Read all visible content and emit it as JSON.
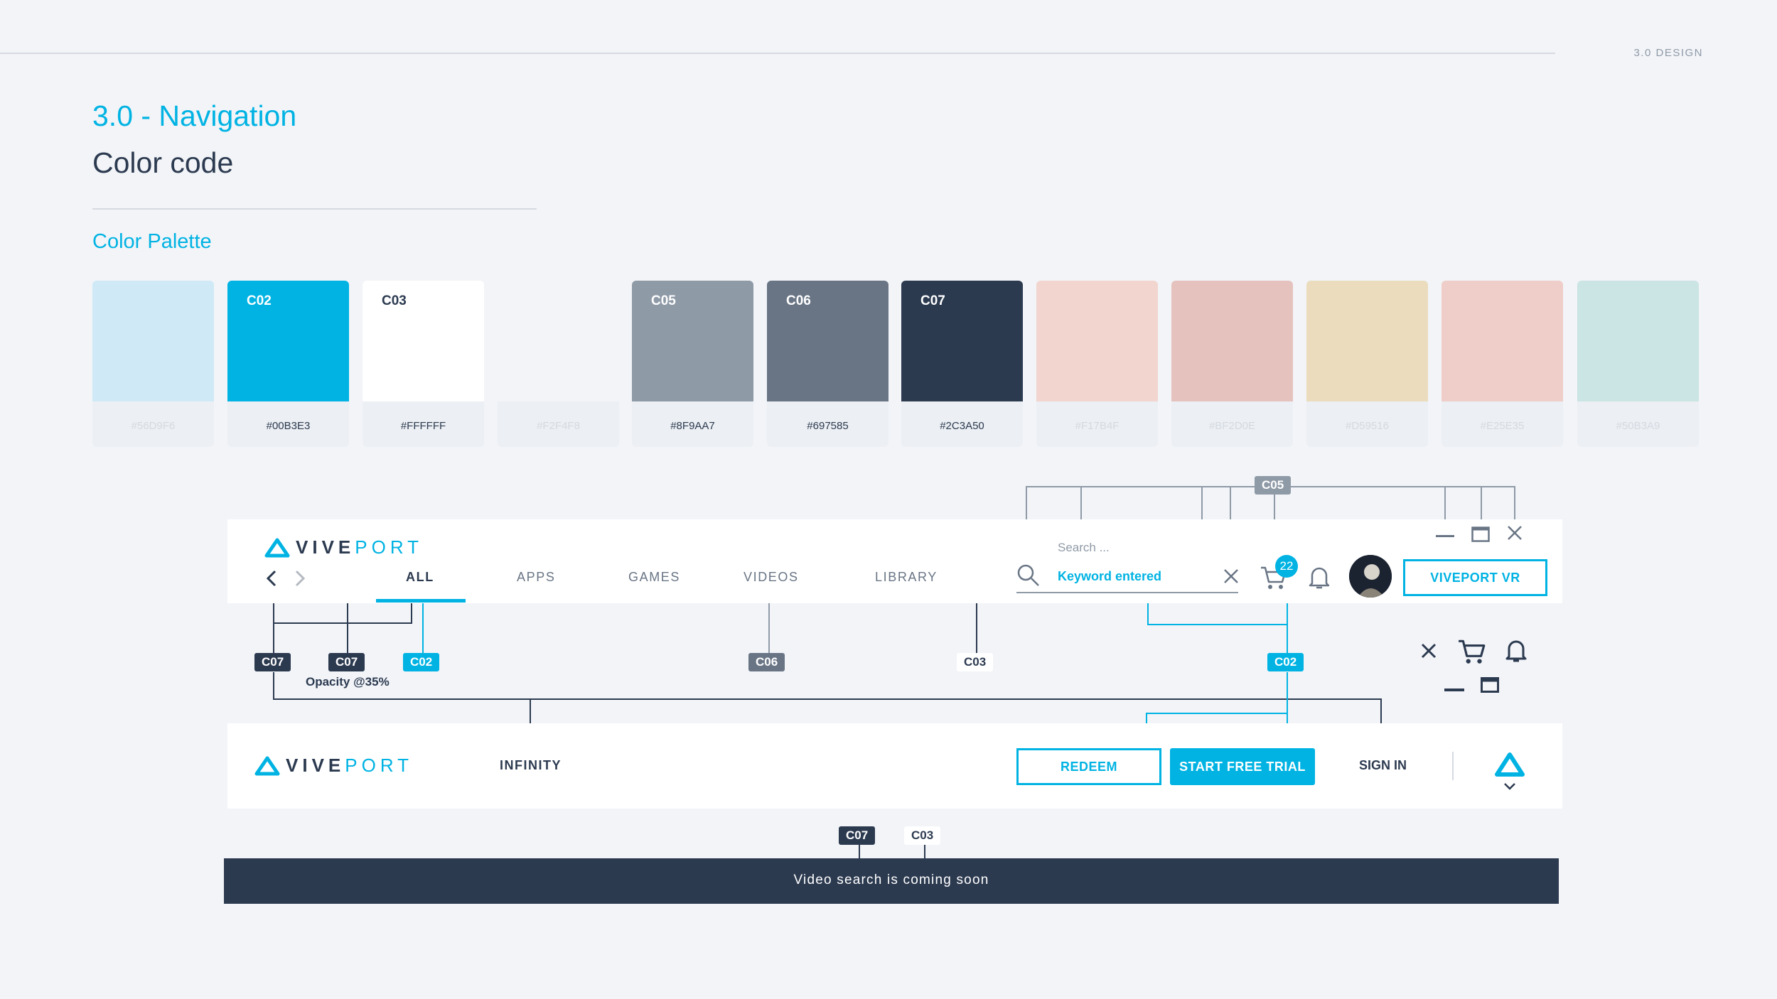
{
  "header": {
    "section_tag": "3.0 DESIGN",
    "section_title": "3.0 - Navigation",
    "page_subtitle": "Color code",
    "palette_title": "Color Palette"
  },
  "palette": [
    {
      "name": "",
      "hex": "#56D9F6",
      "color": "#CFEAF6",
      "hex_visible": false
    },
    {
      "name": "C02",
      "hex": "#00B3E3",
      "color": "#00B3E3",
      "hex_visible": true
    },
    {
      "name": "C03",
      "hex": "#FFFFFF",
      "color": "#FFFFFF",
      "hex_visible": true
    },
    {
      "name": "",
      "hex": "#F2F4F8",
      "color": "#F2F4F8",
      "hex_visible": false
    },
    {
      "name": "C05",
      "hex": "#8F9AA7",
      "color": "#8F9AA7",
      "hex_visible": true
    },
    {
      "name": "C06",
      "hex": "#697585",
      "color": "#697585",
      "hex_visible": true
    },
    {
      "name": "C07",
      "hex": "#2C3A50",
      "color": "#2C3A50",
      "hex_visible": true
    },
    {
      "name": "",
      "hex": "#F17B4F",
      "color": "#F2D5CE",
      "hex_visible": false
    },
    {
      "name": "",
      "hex": "#BF2D0E",
      "color": "#E5C2BE",
      "hex_visible": false
    },
    {
      "name": "",
      "hex": "#D59516",
      "color": "#EADCBD",
      "hex_visible": false
    },
    {
      "name": "",
      "hex": "#E25E35",
      "color": "#EFCDC8",
      "hex_visible": false
    },
    {
      "name": "",
      "hex": "#50B3A9",
      "color": "#CBE4E4",
      "hex_visible": false
    }
  ],
  "nav_primary": {
    "logo_vive": "VIVE",
    "logo_port": "PORT",
    "tabs": [
      "ALL",
      "APPS",
      "GAMES",
      "VIDEOS",
      "LIBRARY"
    ],
    "search_placeholder": "Search ...",
    "search_value": "Keyword entered",
    "cart_badge": "22",
    "vr_button": "VIVEPORT VR"
  },
  "nav_secondary": {
    "logo_vive": "VIVE",
    "logo_port": "PORT",
    "infinity": "INFINITY",
    "redeem": "REDEEM",
    "start_trial": "START FREE TRIAL",
    "sign_in": "SIGN IN"
  },
  "annotations": {
    "c07": "C07",
    "c07_b": "C07",
    "c07_note": "Opacity @35%",
    "c02": "C02",
    "c06": "C06",
    "c03": "C03",
    "c02_b": "C02",
    "c05": "C05",
    "toast_c07": "C07",
    "toast_c03": "C03"
  },
  "toast": {
    "message": "Video search is coming soon"
  },
  "colors": {
    "accent": "#00B3E3",
    "dark": "#2C3A50",
    "mid": "#697585",
    "light": "#8F9AA7",
    "background": "#F2F4F8"
  }
}
